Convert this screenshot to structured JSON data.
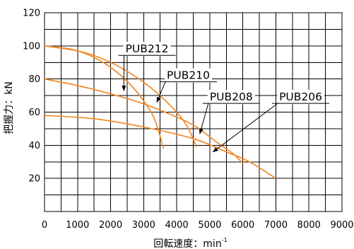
{
  "chart_data": {
    "type": "line",
    "xlabel": "回転速度：min",
    "xlabel_sup": "-1",
    "ylabel": "把握力：kN",
    "xlim": [
      0,
      9000
    ],
    "ylim": [
      0,
      120
    ],
    "x_ticks": [
      "0",
      "1000",
      "2000",
      "3000",
      "4000",
      "5000",
      "6000",
      "7000",
      "8000",
      "9000"
    ],
    "y_ticks": [
      "20",
      "40",
      "60",
      "80",
      "100",
      "120"
    ],
    "y_tick_values": [
      20,
      40,
      60,
      80,
      100,
      120
    ],
    "x_minor_step": 500,
    "y_minor_step": 10,
    "grid": true,
    "series": [
      {
        "name": "PUB212",
        "points": [
          [
            0,
            100
          ],
          [
            800,
            98
          ],
          [
            1500,
            93
          ],
          [
            2200,
            84
          ],
          [
            2800,
            72
          ],
          [
            3300,
            57
          ],
          [
            3600,
            38
          ]
        ],
        "label_at": [
          3100,
          96
        ],
        "arrow_to": [
          2400,
          73
        ]
      },
      {
        "name": "PUB210",
        "points": [
          [
            0,
            100
          ],
          [
            1200,
            96
          ],
          [
            2200,
            88
          ],
          [
            3200,
            75
          ],
          [
            3900,
            62
          ],
          [
            4300,
            52
          ],
          [
            4600,
            39
          ]
        ],
        "label_at": [
          4350,
          80
        ],
        "arrow_to": [
          3400,
          66
        ]
      },
      {
        "name": "PUB208",
        "points": [
          [
            0,
            80
          ],
          [
            1000,
            76
          ],
          [
            2000,
            71
          ],
          [
            3000,
            65
          ],
          [
            4000,
            57
          ],
          [
            4600,
            51
          ],
          [
            5200,
            42
          ],
          [
            5700,
            35
          ],
          [
            6000,
            29
          ]
        ],
        "label_at": [
          5650,
          67
        ],
        "arrow_to": [
          4700,
          47
        ]
      },
      {
        "name": "PUB206",
        "points": [
          [
            0,
            58
          ],
          [
            1500,
            56
          ],
          [
            3000,
            51
          ],
          [
            4500,
            44
          ],
          [
            5500,
            36
          ],
          [
            6200,
            30
          ],
          [
            7000,
            20
          ]
        ],
        "label_at": [
          7750,
          67
        ],
        "arrow_to": [
          5100,
          36
        ]
      }
    ]
  }
}
